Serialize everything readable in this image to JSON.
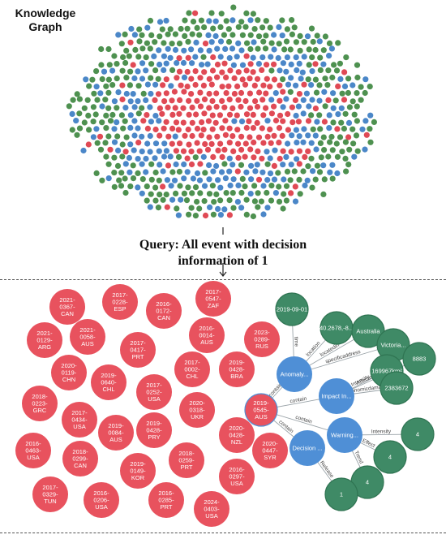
{
  "title": "Knowledge\nGraph",
  "query": "Query: All event with decision\ninformation of 1",
  "colors": {
    "event": "#e8525e",
    "event_stroke": "#c93b46",
    "blue": "#4f8fd6",
    "green": "#3f8a66",
    "green_dark": "#2f7452",
    "cloud_green": "#4e9150",
    "cloud_blue": "#4b87c8",
    "cloud_red": "#e04a55"
  },
  "events": [
    "2021-\n0367-\nCAN",
    "2017-\n0228-\nESP",
    "2016-\n0172-\nCAN",
    "2017-\n0547-\nZAF",
    "2021-\n0129-\nARG",
    "2021-\n0058-\nAUS",
    "2017-\n0417-\nPRT",
    "2016-\n0014-\nAUS",
    "2023-\n0289-\nRUS",
    "2020-\n0119-\nCHN",
    "2019-\n0640-\nCHL",
    "2017-\n0002-\nCHL",
    "2019-\n0428-\nBRA",
    "2018-\n0223-\nGRC",
    "2017-\n0252-\nUSA",
    "2020-\n0318-\nUKR",
    "2017-\n0434-\nUSA",
    "2019-\n0084-\nAUS",
    "2019-\n0428-\nPRY",
    "2020-\n0428-\nNZL",
    "2016-\n0463-\nUSA",
    "2018-\n0299-\nCAN",
    "2018-\n0259-\nPRT",
    "2020-\n0447-\nSYR",
    "2019-\n0149-\nKOR",
    "2016-\n0297-\nUSA",
    "2017-\n0329-\nTUN",
    "2016-\n0206-\nUSA",
    "2016-\n0285-\nPRT",
    "2024-\n0403-\nUSA"
  ],
  "detail": {
    "center": "2019-\n0545-\nAUS",
    "blue_nodes": [
      "Anomaly...",
      "Impact In...",
      "Warning...",
      "Decision ..."
    ],
    "green_nodes": [
      "2019-09-01",
      "40.2678,-8...",
      "Australia",
      "Victoria...",
      "169967km²",
      "8883",
      "2383672",
      "4",
      "4",
      "4",
      "1"
    ],
    "edge_labels": [
      "contain",
      "contain",
      "contain",
      "contain",
      "time",
      "location",
      "locatedin",
      "specificaddress",
      "Intensity",
      "Affectedpopulation",
      "Economicdamage",
      "Intensity",
      "Effect",
      "Trend",
      "Release"
    ]
  }
}
